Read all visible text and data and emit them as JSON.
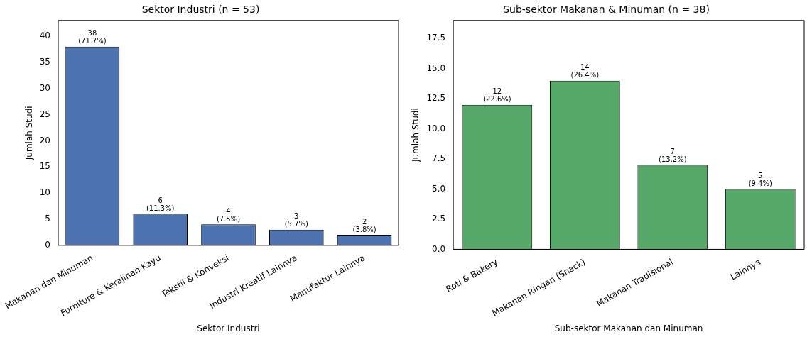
{
  "chart_data": [
    {
      "type": "bar",
      "title": "Sektor Industri (n = 53)",
      "xlabel": "Sektor Industri",
      "ylabel": "Jumlah Studi",
      "categories": [
        "Makanan dan Minuman",
        "Furniture & Kerajinan Kayu",
        "Tekstil & Konveksi",
        "Industri Kreatif Lainnya",
        "Manufaktur Lainnya"
      ],
      "values": [
        38,
        6,
        4,
        3,
        2
      ],
      "color": "#4c72b0",
      "ylim": [
        0,
        43
      ],
      "yticks": [
        0,
        5,
        10,
        15,
        20,
        25,
        30,
        35,
        40
      ],
      "value_labels": [
        "38\n(71.7%)",
        "6\n(11.3%)",
        "4\n(7.5%)",
        "3\n(5.7%)",
        "2\n(3.8%)"
      ]
    },
    {
      "type": "bar",
      "title": "Sub-sektor Makanan & Minuman (n = 38)",
      "xlabel": "Sub-sektor Makanan dan Minuman",
      "ylabel": "Jumlah Studi",
      "categories": [
        "Roti & Bakery",
        "Makanan Ringan (Snack)",
        "Makanan Tradisional",
        "Lainnya"
      ],
      "values": [
        12,
        14,
        7,
        5
      ],
      "color": "#55a868",
      "ylim": [
        0,
        19
      ],
      "yticks": [
        {
          "value": 0,
          "label": "0.0"
        },
        {
          "value": 2.5,
          "label": "2.5"
        },
        {
          "value": 5,
          "label": "5.0"
        },
        {
          "value": 7.5,
          "label": "7.5"
        },
        {
          "value": 10,
          "label": "10.0"
        },
        {
          "value": 12.5,
          "label": "12.5"
        },
        {
          "value": 15,
          "label": "15.0"
        },
        {
          "value": 17.5,
          "label": "17.5"
        }
      ],
      "value_labels": [
        "12\n(22.6%)",
        "14\n(26.4%)",
        "7\n(13.2%)",
        "5\n(9.4%)"
      ]
    }
  ]
}
